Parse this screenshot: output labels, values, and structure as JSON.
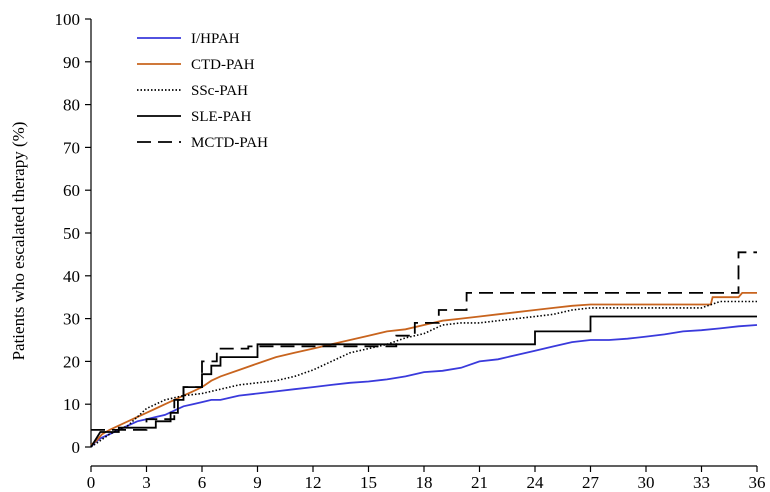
{
  "chart_data": {
    "type": "line",
    "title": "",
    "xlabel": "",
    "ylabel": "Patients who escalated therapy (%)",
    "xlim": [
      0,
      36
    ],
    "ylim": [
      0,
      100
    ],
    "x_ticks": [
      "0",
      "3",
      "6",
      "9",
      "12",
      "15",
      "18",
      "21",
      "24",
      "27",
      "30",
      "33",
      "36"
    ],
    "y_ticks": [
      "0",
      "10",
      "20",
      "30",
      "40",
      "50",
      "60",
      "70",
      "80",
      "90",
      "100"
    ],
    "grid": false,
    "legend_position": "top-left",
    "series": [
      {
        "name": "I/HPAH",
        "color": "#3a3adc",
        "dash": "solid",
        "points": [
          [
            0,
            0
          ],
          [
            0.2,
            1
          ],
          [
            0.5,
            2
          ],
          [
            1,
            3
          ],
          [
            1.5,
            4
          ],
          [
            2,
            5
          ],
          [
            2.5,
            6
          ],
          [
            3,
            6.5
          ],
          [
            3.5,
            7
          ],
          [
            4,
            7.5
          ],
          [
            4.5,
            8.5
          ],
          [
            5,
            9.5
          ],
          [
            5.5,
            10
          ],
          [
            6,
            10.5
          ],
          [
            6.5,
            11
          ],
          [
            7,
            11
          ],
          [
            8,
            12
          ],
          [
            9,
            12.5
          ],
          [
            10,
            13
          ],
          [
            11,
            13.5
          ],
          [
            12,
            14
          ],
          [
            13,
            14.5
          ],
          [
            14,
            15
          ],
          [
            15,
            15.3
          ],
          [
            16,
            15.8
          ],
          [
            17,
            16.5
          ],
          [
            18,
            17.5
          ],
          [
            19,
            17.8
          ],
          [
            20,
            18.5
          ],
          [
            21,
            20
          ],
          [
            22,
            20.5
          ],
          [
            23,
            21.5
          ],
          [
            24,
            22.5
          ],
          [
            25,
            23.5
          ],
          [
            26,
            24.5
          ],
          [
            27,
            25
          ],
          [
            28,
            25
          ],
          [
            29,
            25.3
          ],
          [
            30,
            25.8
          ],
          [
            31,
            26.3
          ],
          [
            32,
            27
          ],
          [
            33,
            27.3
          ],
          [
            34,
            27.7
          ],
          [
            35,
            28.2
          ],
          [
            36,
            28.5
          ]
        ]
      },
      {
        "name": "CTD-PAH",
        "color": "#c8641e",
        "dash": "solid",
        "points": [
          [
            0,
            0.5
          ],
          [
            0.3,
            1.5
          ],
          [
            0.6,
            3
          ],
          [
            1,
            4
          ],
          [
            1.5,
            5
          ],
          [
            2,
            6
          ],
          [
            2.5,
            7
          ],
          [
            3,
            8
          ],
          [
            3.5,
            9
          ],
          [
            4,
            10
          ],
          [
            4.5,
            11
          ],
          [
            5,
            12
          ],
          [
            5.5,
            13
          ],
          [
            6,
            14
          ],
          [
            6.5,
            15.5
          ],
          [
            7,
            16.5
          ],
          [
            8,
            18
          ],
          [
            9,
            19.5
          ],
          [
            10,
            21
          ],
          [
            11,
            22
          ],
          [
            12,
            23
          ],
          [
            13,
            24
          ],
          [
            14,
            25
          ],
          [
            15,
            26
          ],
          [
            16,
            27
          ],
          [
            17,
            27.5
          ],
          [
            18,
            28.5
          ],
          [
            19,
            29.5
          ],
          [
            20,
            30
          ],
          [
            21,
            30.5
          ],
          [
            22,
            31
          ],
          [
            23,
            31.5
          ],
          [
            24,
            32
          ],
          [
            25,
            32.5
          ],
          [
            26,
            33
          ],
          [
            27,
            33.3
          ],
          [
            30,
            33.3
          ],
          [
            33.5,
            33.3
          ],
          [
            33.6,
            35
          ],
          [
            35,
            35
          ],
          [
            35.2,
            36
          ],
          [
            36,
            36
          ]
        ]
      },
      {
        "name": "SSc-PAH",
        "color": "#000000",
        "dash": "dotted",
        "points": [
          [
            0,
            0
          ],
          [
            0.5,
            1.5
          ],
          [
            1,
            3
          ],
          [
            2,
            5
          ],
          [
            2.5,
            7
          ],
          [
            3,
            9
          ],
          [
            3.5,
            10
          ],
          [
            4,
            11
          ],
          [
            5,
            12
          ],
          [
            6,
            12.5
          ],
          [
            7,
            13.5
          ],
          [
            8,
            14.5
          ],
          [
            9,
            15
          ],
          [
            10,
            15.5
          ],
          [
            11,
            16.5
          ],
          [
            12,
            18
          ],
          [
            13,
            20
          ],
          [
            14,
            22
          ],
          [
            15,
            23
          ],
          [
            16,
            24
          ],
          [
            17,
            25.5
          ],
          [
            18,
            26.5
          ],
          [
            19,
            28.5
          ],
          [
            20,
            29
          ],
          [
            21,
            29
          ],
          [
            22,
            29.5
          ],
          [
            23,
            30
          ],
          [
            24,
            30.5
          ],
          [
            25,
            31
          ],
          [
            26,
            32
          ],
          [
            27,
            32.5
          ],
          [
            30,
            32.5
          ],
          [
            33,
            32.5
          ],
          [
            34,
            34
          ],
          [
            36,
            34
          ]
        ]
      },
      {
        "name": "SLE-PAH",
        "color": "#000000",
        "dash": "solid",
        "points": [
          [
            0,
            0
          ],
          [
            0.5,
            3.5
          ],
          [
            1.5,
            3.5
          ],
          [
            1.5,
            4.5
          ],
          [
            3.5,
            4.5
          ],
          [
            3.5,
            6
          ],
          [
            4.3,
            6
          ],
          [
            4.3,
            8
          ],
          [
            4.7,
            8
          ],
          [
            4.7,
            11
          ],
          [
            5,
            11
          ],
          [
            5,
            14
          ],
          [
            6,
            14
          ],
          [
            6,
            17
          ],
          [
            6.5,
            17
          ],
          [
            6.5,
            19
          ],
          [
            7,
            19
          ],
          [
            7,
            21
          ],
          [
            9,
            21
          ],
          [
            9,
            24
          ],
          [
            24,
            24
          ],
          [
            24,
            27
          ],
          [
            27,
            27
          ],
          [
            27,
            30.5
          ],
          [
            36,
            30.5
          ]
        ]
      },
      {
        "name": "MCTD-PAH",
        "color": "#000000",
        "dash": "dashed",
        "points": [
          [
            0,
            4
          ],
          [
            0.3,
            4
          ],
          [
            3,
            4
          ],
          [
            3,
            6.5
          ],
          [
            4.5,
            6.5
          ],
          [
            4.5,
            11
          ],
          [
            5,
            11
          ],
          [
            5,
            14
          ],
          [
            6,
            14
          ],
          [
            6,
            20
          ],
          [
            6.8,
            20
          ],
          [
            6.8,
            23
          ],
          [
            8.5,
            23
          ],
          [
            8.5,
            23.5
          ],
          [
            16.5,
            23.5
          ],
          [
            16.5,
            26
          ],
          [
            17.5,
            26
          ],
          [
            17.5,
            29
          ],
          [
            18.8,
            29
          ],
          [
            18.8,
            32
          ],
          [
            20.3,
            32
          ],
          [
            20.3,
            36
          ],
          [
            35,
            36
          ],
          [
            35,
            45.5
          ],
          [
            36,
            45.5
          ]
        ]
      }
    ]
  }
}
